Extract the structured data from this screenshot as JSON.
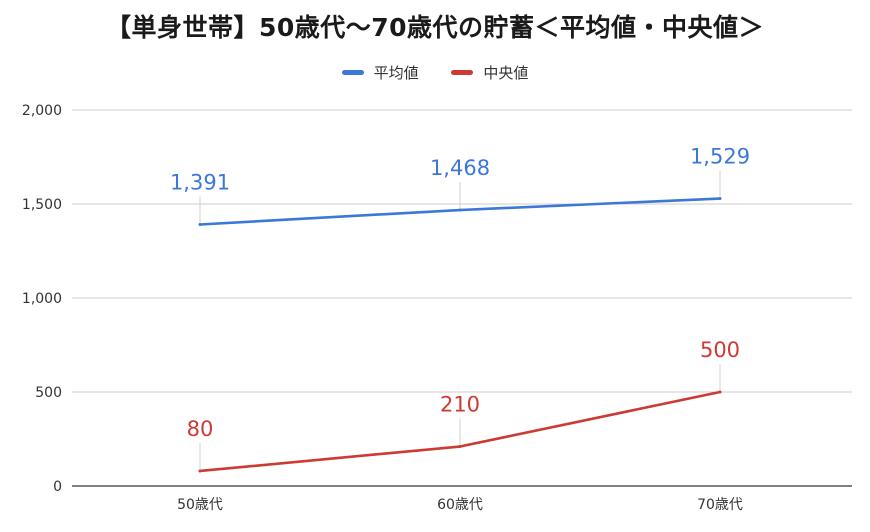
{
  "chart_data": {
    "type": "line",
    "title": "【単身世帯】50歳代〜70歳代の貯蓄＜平均値・中央値＞",
    "categories": [
      "50歳代",
      "60歳代",
      "70歳代"
    ],
    "series": [
      {
        "name": "平均値",
        "values": [
          1391,
          1468,
          1529
        ],
        "labels": [
          "1,391",
          "1,468",
          "1,529"
        ],
        "color": "#3c78d8"
      },
      {
        "name": "中央値",
        "values": [
          80,
          210,
          500
        ],
        "labels": [
          "80",
          "210",
          "500"
        ],
        "color": "#cc3b33"
      }
    ],
    "ylim": [
      0,
      2000
    ],
    "yticks": [
      0,
      500,
      1000,
      1500,
      2000
    ],
    "ytick_labels": [
      "0",
      "500",
      "1,000",
      "1,500",
      "2,000"
    ],
    "xlabel": "",
    "ylabel": "",
    "grid": true,
    "legend_position": "top-center"
  }
}
